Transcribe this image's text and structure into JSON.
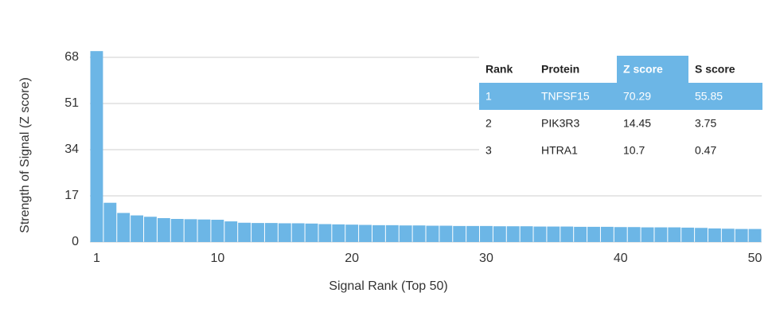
{
  "chart_data": {
    "type": "bar",
    "x_label": "Signal Rank (Top 50)",
    "y_label": "Strength of Signal (Z score)",
    "x": [
      1,
      2,
      3,
      4,
      5,
      6,
      7,
      8,
      9,
      10,
      11,
      12,
      13,
      14,
      15,
      16,
      17,
      18,
      19,
      20,
      21,
      22,
      23,
      24,
      25,
      26,
      27,
      28,
      29,
      30,
      31,
      32,
      33,
      34,
      35,
      36,
      37,
      38,
      39,
      40,
      41,
      42,
      43,
      44,
      45,
      46,
      47,
      48,
      49,
      50
    ],
    "values": [
      70.29,
      14.45,
      10.7,
      9.8,
      9.3,
      8.8,
      8.5,
      8.4,
      8.3,
      8.2,
      7.6,
      7.1,
      7.0,
      7.0,
      6.9,
      6.9,
      6.8,
      6.6,
      6.5,
      6.4,
      6.3,
      6.2,
      6.2,
      6.1,
      6.1,
      6.0,
      6.0,
      5.9,
      5.9,
      5.9,
      5.8,
      5.8,
      5.8,
      5.7,
      5.7,
      5.7,
      5.6,
      5.6,
      5.6,
      5.5,
      5.5,
      5.4,
      5.4,
      5.4,
      5.3,
      5.2,
      5.0,
      4.9,
      4.8,
      4.8
    ],
    "color": "#6cb6e6",
    "xlim": [
      0.5,
      50.5
    ],
    "xticks": [
      1,
      10,
      20,
      30,
      40,
      50
    ],
    "ylim": [
      0,
      68
    ],
    "yticks": [
      0,
      17,
      34,
      51,
      68
    ],
    "grid": true
  },
  "table": {
    "columns": [
      "Rank",
      "Protein",
      "Z score",
      "S score"
    ],
    "rows": [
      [
        1,
        "TNFSF15",
        70.29,
        55.85
      ],
      [
        2,
        "PIK3R3",
        14.45,
        3.75
      ],
      [
        3,
        "HTRA1",
        10.7,
        0.47
      ]
    ],
    "highlight_row": 0,
    "highlight_column": 2,
    "highlight_color": "#6cb6e6"
  }
}
